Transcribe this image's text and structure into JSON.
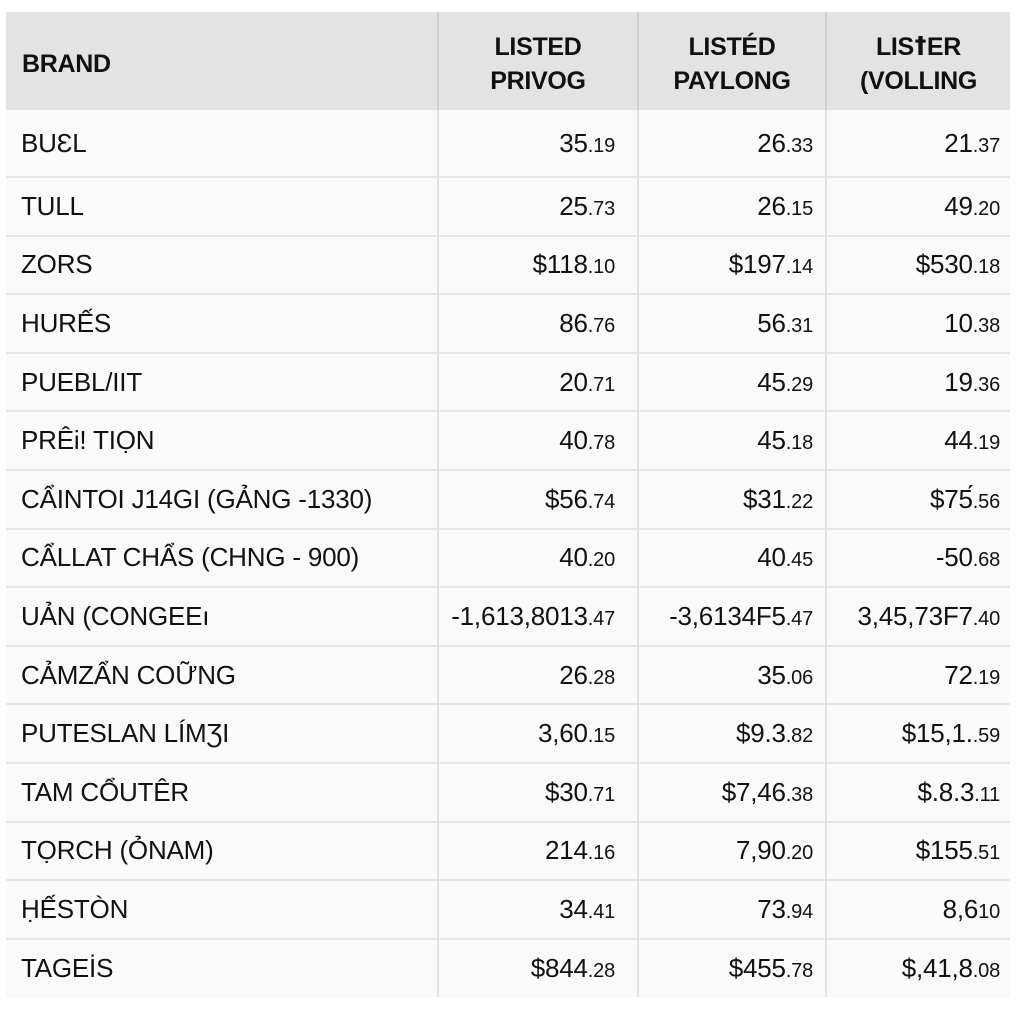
{
  "table": {
    "headers": [
      {
        "line1": "BRAND",
        "line2": ""
      },
      {
        "line1": "LISTED",
        "line2": "PRIVOG"
      },
      {
        "line1": "LISTÉD",
        "line2": "PAYLONG"
      },
      {
        "line1": "LISꝉER",
        "line2": "(VOLLING"
      }
    ],
    "rows": [
      {
        "brand": "BUƐL",
        "c1": {
          "i": "35",
          "d": ".19"
        },
        "c2": {
          "i": "26",
          "d": ".33"
        },
        "c3": {
          "i": "21",
          "d": ".37"
        }
      },
      {
        "brand": "TULL",
        "c1": {
          "i": "25",
          "d": ".73"
        },
        "c2": {
          "i": "26",
          "d": ".15"
        },
        "c3": {
          "i": "49",
          "d": ".20"
        }
      },
      {
        "brand": "ZORS",
        "c1": {
          "i": "$118",
          "d": ".10"
        },
        "c2": {
          "i": "$197",
          "d": ".14"
        },
        "c3": {
          "i": "$530",
          "d": ".18"
        }
      },
      {
        "brand": "HURẾS",
        "c1": {
          "i": "86",
          "d": ".76"
        },
        "c2": {
          "i": "56",
          "d": ".31"
        },
        "c3": {
          "i": "10",
          "d": ".38"
        }
      },
      {
        "brand": "PUEBL/IIT",
        "c1": {
          "i": "20",
          "d": ".71"
        },
        "c2": {
          "i": "45",
          "d": ".29"
        },
        "c3": {
          "i": "19",
          "d": ".36"
        }
      },
      {
        "brand": "PRÊi! TIỌN",
        "c1": {
          "i": "40",
          "d": ".78"
        },
        "c2": {
          "i": "45",
          "d": ".18"
        },
        "c3": {
          "i": "44",
          "d": ".19"
        }
      },
      {
        "brand": "CẨINTOI J14GI (GẢNG -1330)",
        "c1": {
          "i": "$56",
          "d": ".74"
        },
        "c2": {
          "i": "$31",
          "d": ".22"
        },
        "c3": {
          "i": "$75́",
          "d": ".56"
        }
      },
      {
        "brand": "CẨLLAT CHẨS (CHNG - 900)",
        "c1": {
          "i": "40",
          "d": ".20"
        },
        "c2": {
          "i": "40",
          "d": ".45"
        },
        "c3": {
          "i": "-50",
          "d": ".68"
        }
      },
      {
        "brand": "UẢN (CONGEEı",
        "c1": {
          "i": "-1,613,8013",
          "d": ".47"
        },
        "c2": {
          "i": "-3,6134F5",
          "d": ".47"
        },
        "c3": {
          "i": "3,45,73F7",
          "d": ".40"
        }
      },
      {
        "brand": "CẢMZẨN COỮNG",
        "c1": {
          "i": "26",
          "d": ".28"
        },
        "c2": {
          "i": "35",
          "d": ".06"
        },
        "c3": {
          "i": "72",
          "d": ".19"
        }
      },
      {
        "brand": "PUTESLAN LÍMƷI",
        "c1": {
          "i": "3,60",
          "d": ".15"
        },
        "c2": {
          "i": "$9.3",
          "d": ".82"
        },
        "c3": {
          "i": "$15,1.",
          "d": ".59"
        }
      },
      {
        "brand": "TAM CỔUTÊR",
        "c1": {
          "i": "$30",
          "d": ".71"
        },
        "c2": {
          "i": "$7,46",
          "d": ".38"
        },
        "c3": {
          "i": "$.8.3",
          "d": ".11"
        }
      },
      {
        "brand": "TỌRCH (ỎNAM)",
        "c1": {
          "i": "214",
          "d": ".16"
        },
        "c2": {
          "i": "7,90",
          "d": ".20"
        },
        "c3": {
          "i": "$155",
          "d": ".51"
        }
      },
      {
        "brand": "ḤẾSTÒN",
        "c1": {
          "i": "34",
          "d": ".41"
        },
        "c2": {
          "i": "73",
          "d": ".94"
        },
        "c3": {
          "i": "8,6",
          "d": "10"
        }
      },
      {
        "brand": "TAGEİS",
        "c1": {
          "i": "$844",
          "d": ".28"
        },
        "c2": {
          "i": "$455",
          "d": ".78"
        },
        "c3": {
          "i": "$,41,8",
          "d": ".08"
        }
      }
    ]
  },
  "colors": {
    "header_bg": "#e3e3e3",
    "row_bg": "#fafafa",
    "divider": "#e2e2e2",
    "text": "#111111"
  }
}
